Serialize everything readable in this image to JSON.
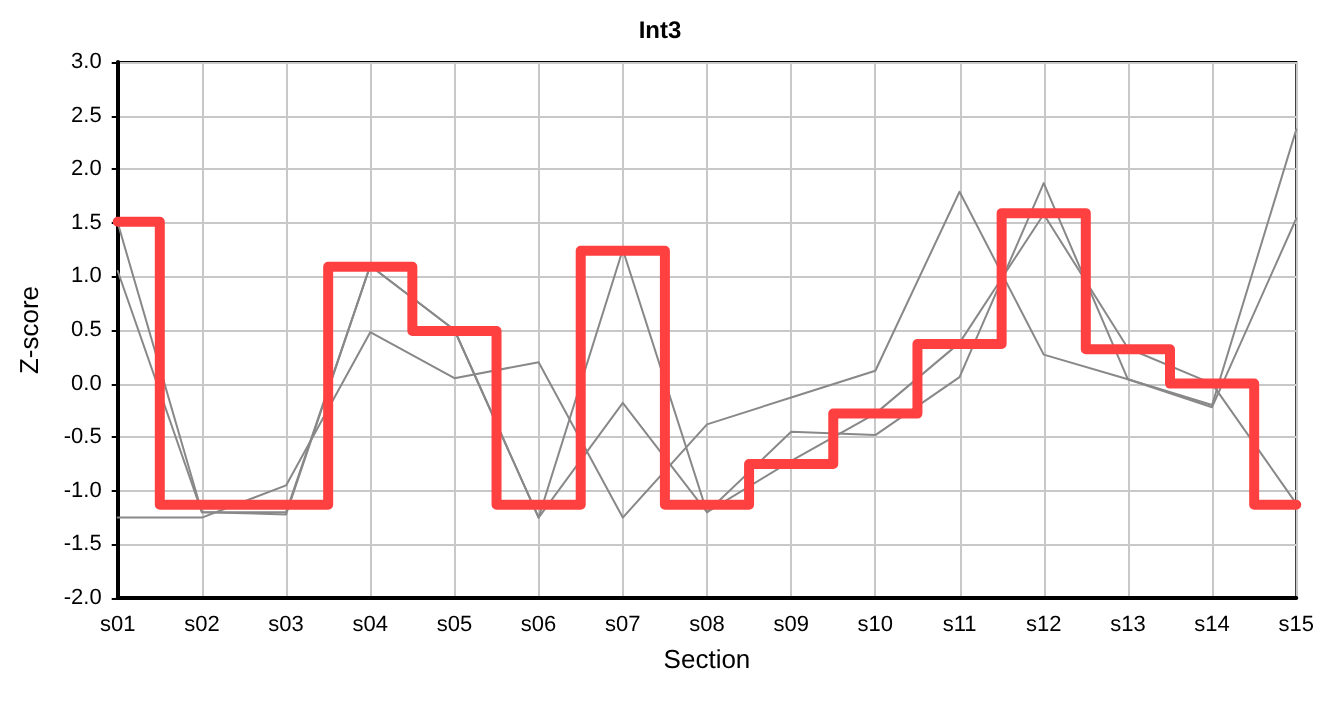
{
  "chart_data": {
    "type": "line",
    "title": "Int3",
    "xlabel": "Section",
    "ylabel": "Z-score",
    "categories": [
      "s01",
      "s02",
      "s03",
      "s04",
      "s05",
      "s06",
      "s07",
      "s08",
      "s09",
      "s10",
      "s11",
      "s12",
      "s13",
      "s14",
      "s15"
    ],
    "series": [
      {
        "color": "#888888",
        "values": [
          1.5,
          -1.2,
          -1.2,
          1.1,
          0.5,
          -1.25,
          1.25,
          -1.2,
          -0.72,
          -0.28,
          0.38,
          1.58,
          0.33,
          0.0,
          -1.12
        ]
      },
      {
        "color": "#888888",
        "values": [
          1.05,
          -1.2,
          -1.22,
          1.1,
          0.5,
          -1.25,
          -0.18,
          -1.2,
          -0.45,
          -0.48,
          0.06,
          1.87,
          0.04,
          -0.2,
          2.37
        ]
      },
      {
        "color": "#888888",
        "values": [
          -1.25,
          -1.25,
          -0.95,
          0.48,
          0.05,
          0.2,
          -1.25,
          -0.38,
          -0.13,
          0.12,
          1.79,
          0.27,
          0.04,
          -0.22,
          1.54
        ]
      },
      {
        "type": "step",
        "color": "#ff4040",
        "values": [
          1.51,
          -1.13,
          -1.13,
          1.09,
          0.49,
          -1.13,
          1.24,
          -1.13,
          -0.75,
          -0.28,
          0.37,
          1.59,
          0.32,
          0.0,
          -1.13
        ]
      }
    ],
    "ylim": [
      -2,
      3
    ],
    "yticks": [
      {
        "value": -2,
        "label": "-2.0"
      },
      {
        "value": -1.5,
        "label": "-1.5"
      },
      {
        "value": -1,
        "label": "-1.0"
      },
      {
        "value": -0.5,
        "label": "-0.5"
      },
      {
        "value": 0,
        "label": "0.0"
      },
      {
        "value": 0.5,
        "label": "0.5"
      },
      {
        "value": 1,
        "label": "1.0"
      },
      {
        "value": 1.5,
        "label": "1.5"
      },
      {
        "value": 2,
        "label": "2.0"
      },
      {
        "value": 2.5,
        "label": "2.5"
      },
      {
        "value": 3,
        "label": "3.0"
      }
    ],
    "grid": true,
    "marker": "none",
    "line_style": "solid"
  }
}
